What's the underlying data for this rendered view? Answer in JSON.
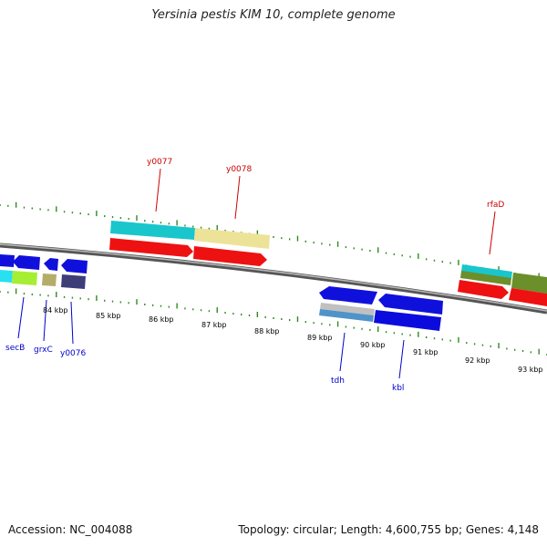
{
  "title": "Yersinia pestis KIM 10, complete genome",
  "footer": {
    "accession": "Accession: NC_004088",
    "summary": "Topology: circular; Length: 4,600,755 bp; Genes: 4,148"
  },
  "colors": {
    "backbone": "#8c8c8c",
    "tick": "#2e8b1f",
    "forward_label": "#cc0000",
    "reverse_label": "#0000cc"
  },
  "ruler": {
    "unit": "kbp",
    "ticks": [
      {
        "value": 84,
        "label": "84 kbp"
      },
      {
        "value": 85,
        "label": "85 kbp"
      },
      {
        "value": 86,
        "label": "86 kbp"
      },
      {
        "value": 87,
        "label": "87 kbp"
      },
      {
        "value": 88,
        "label": "88 kbp"
      },
      {
        "value": 89,
        "label": "89 kbp"
      },
      {
        "value": 90,
        "label": "90 kbp"
      },
      {
        "value": 91,
        "label": "91 kbp"
      },
      {
        "value": 92,
        "label": "92 kbp"
      },
      {
        "value": 93,
        "label": "93 kbp"
      }
    ]
  },
  "gene_labels": {
    "forward": [
      "y0077",
      "y0078",
      "rfaD"
    ],
    "reverse": [
      "secB",
      "grxC",
      "y0076",
      "tdh",
      "kbl"
    ]
  }
}
